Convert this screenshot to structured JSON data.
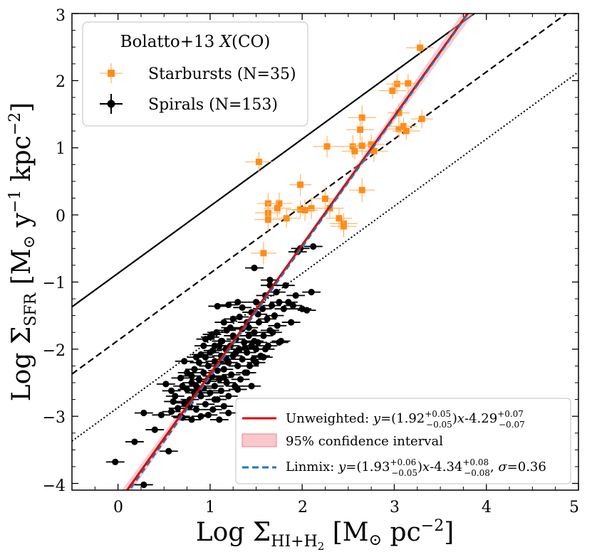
{
  "chart_data": {
    "type": "scatter",
    "xlabel": "Log Σ_HI+H2 [M⊙ pc⁻²]",
    "ylabel": "Log Σ_SFR [M⊙ y⁻¹ kpc⁻²]",
    "xlabel_parts": {
      "main": "Log Σ",
      "sub": "HI+H",
      "sub2": "2",
      "unit": " [M",
      "sun": "⊙",
      "unit2": " pc",
      "exp": "−2",
      "close": "]"
    },
    "ylabel_parts": {
      "main": "Log Σ",
      "sub": "SFR",
      "unit": " [M",
      "sun": "⊙",
      "unit2": " y",
      "exp1": "−1",
      "unit3": " kpc",
      "exp2": "−2",
      "close": "]"
    },
    "xlim": [
      -0.5,
      5
    ],
    "ylim": [
      -4.1,
      3
    ],
    "xticks": [
      0,
      1,
      2,
      3,
      4,
      5
    ],
    "yticks": [
      -4,
      -3,
      -2,
      -1,
      0,
      1,
      2,
      3
    ],
    "xtick_labels": [
      "0",
      "1",
      "2",
      "3",
      "4",
      "5"
    ],
    "ytick_labels": [
      "−4",
      "−3",
      "−2",
      "−1",
      "0",
      "1",
      "2",
      "3"
    ],
    "legend_upper": {
      "title": "Bolatto+13 X(CO)",
      "title_main": "Bolatto+13 ",
      "title_italic": "X",
      "title_rest": "(CO)",
      "location": "top-left",
      "entries": [
        "Starbursts (N=35)",
        "Spirals (N=153)"
      ]
    },
    "legend_lower": {
      "location": "bottom-right",
      "entries": [
        "Unweighted: y=(1.92+0.05−0.05)x-4.29+0.07−0.07",
        "95% confidence interval",
        "Linmix: y=(1.93+0.06−0.05)x-4.34+0.08−0.08, σ=0.36"
      ],
      "unweighted": {
        "prefix": "Unweighted: ",
        "y": "y",
        "eq": "=(1.92",
        "sup1": "+0.05",
        "sub1": "−0.05",
        "mid": ")",
        "x": "x",
        "rest": "-4.29",
        "sup2": "+0.07",
        "sub2": "−0.07"
      },
      "ci": "95% confidence interval",
      "linmix": {
        "prefix": "Linmix: ",
        "y": "y",
        "eq": "=(1.93",
        "sup1": "+0.06",
        "sub1": "−0.05",
        "mid": ")",
        "x": "x",
        "rest": "-4.34",
        "sup2": "+0.08",
        "sub2": "−0.08",
        "tail": ", ",
        "sigma": "σ",
        "tailval": "=0.36"
      }
    },
    "colors": {
      "starburst": "#ff8c1a",
      "spiral": "#000000",
      "fit": "#e00000",
      "band": "#f4a3a8",
      "linmix": "#1f77b4"
    },
    "reference_lines": [
      {
        "name": "solid",
        "style": "solid",
        "slope": 1,
        "intercept": -0.87
      },
      {
        "name": "dashed",
        "style": "dashed",
        "slope": 1,
        "intercept": -1.87
      },
      {
        "name": "dotted",
        "style": "dotted",
        "slope": 1,
        "intercept": -2.87
      }
    ],
    "fit_unweighted": {
      "slope": 1.92,
      "intercept": -4.29
    },
    "fit_linmix": {
      "slope": 1.93,
      "intercept": -4.34
    },
    "starbursts": [
      {
        "x": 3.28,
        "y": 2.49,
        "xerr": 0.15,
        "yerr": 0.12
      },
      {
        "x": 3.03,
        "y": 1.95,
        "xerr": 0.12,
        "yerr": 0.15
      },
      {
        "x": 2.98,
        "y": 1.85,
        "xerr": 0.15,
        "yerr": 0.12
      },
      {
        "x": 3.15,
        "y": 1.96,
        "xerr": 0.15,
        "yerr": 0.14
      },
      {
        "x": 3.05,
        "y": 1.52,
        "xerr": 0.12,
        "yerr": 0.14
      },
      {
        "x": 2.65,
        "y": 1.45,
        "xerr": 0.15,
        "yerr": 0.18
      },
      {
        "x": 3.3,
        "y": 1.43,
        "xerr": 0.12,
        "yerr": 0.14
      },
      {
        "x": 3.05,
        "y": 1.28,
        "xerr": 0.15,
        "yerr": 0.13
      },
      {
        "x": 3.1,
        "y": 1.32,
        "xerr": 0.15,
        "yerr": 0.13
      },
      {
        "x": 3.13,
        "y": 1.25,
        "xerr": 0.15,
        "yerr": 0.13
      },
      {
        "x": 2.63,
        "y": 1.27,
        "xerr": 0.15,
        "yerr": 0.17
      },
      {
        "x": 2.75,
        "y": 1.05,
        "xerr": 0.15,
        "yerr": 0.15
      },
      {
        "x": 2.55,
        "y": 1.02,
        "xerr": 0.15,
        "yerr": 0.17
      },
      {
        "x": 2.65,
        "y": 1.03,
        "xerr": 0.14,
        "yerr": 0.14
      },
      {
        "x": 2.27,
        "y": 1.02,
        "xerr": 0.15,
        "yerr": 0.16
      },
      {
        "x": 2.57,
        "y": 0.95,
        "xerr": 0.14,
        "yerr": 0.12
      },
      {
        "x": 2.78,
        "y": 0.95,
        "xerr": 0.15,
        "yerr": 0.16
      },
      {
        "x": 1.53,
        "y": 0.79,
        "xerr": 0.15,
        "yerr": 0.15
      },
      {
        "x": 2.65,
        "y": 0.37,
        "xerr": 0.14,
        "yerr": 0.18
      },
      {
        "x": 1.98,
        "y": 0.45,
        "xerr": 0.12,
        "yerr": 0.16
      },
      {
        "x": 2.25,
        "y": 0.24,
        "xerr": 0.15,
        "yerr": 0.17
      },
      {
        "x": 1.63,
        "y": 0.17,
        "xerr": 0.12,
        "yerr": 0.16
      },
      {
        "x": 1.75,
        "y": 0.17,
        "xerr": 0.14,
        "yerr": 0.16
      },
      {
        "x": 1.73,
        "y": 0.1,
        "xerr": 0.15,
        "yerr": 0.13
      },
      {
        "x": 2.3,
        "y": 0.1,
        "xerr": 0.15,
        "yerr": 0.16
      },
      {
        "x": 2.1,
        "y": 0.1,
        "xerr": 0.12,
        "yerr": 0.16
      },
      {
        "x": 1.98,
        "y": 0.08,
        "xerr": 0.15,
        "yerr": 0.13
      },
      {
        "x": 2.03,
        "y": 0.07,
        "xerr": 0.14,
        "yerr": 0.16
      },
      {
        "x": 1.63,
        "y": 0.03,
        "xerr": 0.14,
        "yerr": 0.15
      },
      {
        "x": 1.63,
        "y": -0.07,
        "xerr": 0.15,
        "yerr": 0.17
      },
      {
        "x": 1.83,
        "y": -0.05,
        "xerr": 0.15,
        "yerr": 0.14
      },
      {
        "x": 2.4,
        "y": -0.05,
        "xerr": 0.14,
        "yerr": 0.16
      },
      {
        "x": 2.45,
        "y": -0.13,
        "xerr": 0.15,
        "yerr": 0.15
      },
      {
        "x": 2.45,
        "y": -0.17,
        "xerr": 0.14,
        "yerr": 0.16
      },
      {
        "x": 1.58,
        "y": -0.57,
        "xerr": 0.14,
        "yerr": 0.17
      }
    ],
    "spirals": [
      {
        "x": -0.03,
        "y": -3.68
      },
      {
        "x": 0.18,
        "y": -3.38
      },
      {
        "x": 0.28,
        "y": -4.02
      },
      {
        "x": 0.28,
        "y": -2.95
      },
      {
        "x": 0.4,
        "y": -3.2
      },
      {
        "x": 0.47,
        "y": -2.98
      },
      {
        "x": 0.52,
        "y": -2.52
      },
      {
        "x": 0.58,
        "y": -2.93
      },
      {
        "x": 0.58,
        "y": -2.62
      },
      {
        "x": 0.62,
        "y": -2.7
      },
      {
        "x": 0.65,
        "y": -2.88
      },
      {
        "x": 0.68,
        "y": -2.43
      },
      {
        "x": 0.7,
        "y": -2.55
      },
      {
        "x": 0.72,
        "y": -2.8
      },
      {
        "x": 0.75,
        "y": -2.6
      },
      {
        "x": 0.75,
        "y": -2.35
      },
      {
        "x": 0.78,
        "y": -2.75
      },
      {
        "x": 0.8,
        "y": -2.5
      },
      {
        "x": 0.8,
        "y": -3.05
      },
      {
        "x": 0.83,
        "y": -2.65
      },
      {
        "x": 0.83,
        "y": -2.3
      },
      {
        "x": 0.85,
        "y": -2.55
      },
      {
        "x": 0.85,
        "y": -2.9
      },
      {
        "x": 0.88,
        "y": -2.2
      },
      {
        "x": 0.88,
        "y": -2.45
      },
      {
        "x": 0.9,
        "y": -2.7
      },
      {
        "x": 0.9,
        "y": -3.0
      },
      {
        "x": 0.93,
        "y": -2.35
      },
      {
        "x": 0.93,
        "y": -2.58
      },
      {
        "x": 0.95,
        "y": -2.12
      },
      {
        "x": 0.95,
        "y": -2.82
      },
      {
        "x": 0.97,
        "y": -2.48
      },
      {
        "x": 0.98,
        "y": -2.25
      },
      {
        "x": 1.0,
        "y": -2.65
      },
      {
        "x": 1.0,
        "y": -1.82
      },
      {
        "x": 1.02,
        "y": -2.4
      },
      {
        "x": 1.03,
        "y": -2.02
      },
      {
        "x": 1.03,
        "y": -2.9
      },
      {
        "x": 1.05,
        "y": -2.55
      },
      {
        "x": 1.05,
        "y": -2.18
      },
      {
        "x": 1.07,
        "y": -1.75
      },
      {
        "x": 1.08,
        "y": -2.32
      },
      {
        "x": 1.08,
        "y": -2.75
      },
      {
        "x": 1.1,
        "y": -1.95
      },
      {
        "x": 1.1,
        "y": -2.45
      },
      {
        "x": 1.12,
        "y": -2.1
      },
      {
        "x": 1.12,
        "y": -2.62
      },
      {
        "x": 1.13,
        "y": -1.88
      },
      {
        "x": 1.15,
        "y": -2.3
      },
      {
        "x": 1.15,
        "y": -2.85
      },
      {
        "x": 1.17,
        "y": -2.0
      },
      {
        "x": 1.18,
        "y": -2.5
      },
      {
        "x": 1.18,
        "y": -1.72
      },
      {
        "x": 1.2,
        "y": -2.2
      },
      {
        "x": 1.2,
        "y": -2.7
      },
      {
        "x": 1.22,
        "y": -1.95
      },
      {
        "x": 1.23,
        "y": -2.38
      },
      {
        "x": 1.25,
        "y": -1.55
      },
      {
        "x": 1.25,
        "y": -2.1
      },
      {
        "x": 1.27,
        "y": -2.55
      },
      {
        "x": 1.28,
        "y": -1.85
      },
      {
        "x": 1.3,
        "y": -2.25
      },
      {
        "x": 1.3,
        "y": -1.3
      },
      {
        "x": 1.32,
        "y": -2.0
      },
      {
        "x": 1.33,
        "y": -2.45
      },
      {
        "x": 1.35,
        "y": -1.7
      },
      {
        "x": 1.35,
        "y": -2.15
      },
      {
        "x": 1.37,
        "y": -1.9
      },
      {
        "x": 1.38,
        "y": -2.35
      },
      {
        "x": 1.4,
        "y": -1.6
      },
      {
        "x": 1.4,
        "y": -2.05
      },
      {
        "x": 1.42,
        "y": -1.8
      },
      {
        "x": 1.43,
        "y": -2.25
      },
      {
        "x": 1.45,
        "y": -1.95
      },
      {
        "x": 1.45,
        "y": -1.45
      },
      {
        "x": 1.47,
        "y": -2.15
      },
      {
        "x": 1.48,
        "y": -1.75
      },
      {
        "x": 1.5,
        "y": -2.0
      },
      {
        "x": 1.5,
        "y": -1.3
      },
      {
        "x": 1.52,
        "y": -1.9
      },
      {
        "x": 1.53,
        "y": -1.6
      },
      {
        "x": 1.55,
        "y": -2.1
      },
      {
        "x": 1.57,
        "y": -1.4
      },
      {
        "x": 1.58,
        "y": -1.8
      },
      {
        "x": 1.6,
        "y": -1.2
      },
      {
        "x": 1.62,
        "y": -1.55
      },
      {
        "x": 1.63,
        "y": -1.95
      },
      {
        "x": 1.65,
        "y": -1.05
      },
      {
        "x": 1.67,
        "y": -1.35
      },
      {
        "x": 1.68,
        "y": -1.75
      },
      {
        "x": 1.7,
        "y": -1.5
      },
      {
        "x": 1.72,
        "y": -1.15
      },
      {
        "x": 1.73,
        "y": -1.65
      },
      {
        "x": 1.75,
        "y": -1.3
      },
      {
        "x": 1.77,
        "y": -1.88
      },
      {
        "x": 1.8,
        "y": -1.4
      },
      {
        "x": 1.82,
        "y": -1.05
      },
      {
        "x": 1.85,
        "y": -1.3
      },
      {
        "x": 1.88,
        "y": -1.6
      },
      {
        "x": 1.9,
        "y": -1.35
      },
      {
        "x": 1.93,
        "y": -1.2
      },
      {
        "x": 1.95,
        "y": -0.55
      },
      {
        "x": 1.98,
        "y": -0.5
      },
      {
        "x": 2.0,
        "y": -1.4
      },
      {
        "x": 2.05,
        "y": -1.42
      },
      {
        "x": 2.1,
        "y": -1.15
      },
      {
        "x": 2.12,
        "y": -0.47
      },
      {
        "x": 1.48,
        "y": -0.79
      },
      {
        "x": 1.65,
        "y": -0.97
      },
      {
        "x": 1.2,
        "y": -1.34
      },
      {
        "x": 1.08,
        "y": -1.36
      },
      {
        "x": 1.0,
        "y": -2.05
      },
      {
        "x": 0.95,
        "y": -1.85
      },
      {
        "x": 1.05,
        "y": -1.95
      },
      {
        "x": 1.15,
        "y": -1.6
      },
      {
        "x": 1.25,
        "y": -1.8
      },
      {
        "x": 1.35,
        "y": -1.38
      },
      {
        "x": 0.72,
        "y": -2.18
      },
      {
        "x": 0.8,
        "y": -2.4
      },
      {
        "x": 0.9,
        "y": -2.08
      },
      {
        "x": 1.05,
        "y": -2.75
      },
      {
        "x": 1.15,
        "y": -2.42
      },
      {
        "x": 1.3,
        "y": -2.6
      },
      {
        "x": 1.4,
        "y": -2.35
      },
      {
        "x": 1.45,
        "y": -2.55
      },
      {
        "x": 1.5,
        "y": -2.2
      },
      {
        "x": 1.2,
        "y": -2.95
      },
      {
        "x": 0.98,
        "y": -2.98
      },
      {
        "x": 0.7,
        "y": -3.02
      },
      {
        "x": 1.1,
        "y": -3.05
      },
      {
        "x": 1.6,
        "y": -2.0
      },
      {
        "x": 1.65,
        "y": -1.72
      },
      {
        "x": 0.85,
        "y": -2.12
      },
      {
        "x": 0.93,
        "y": -1.95
      },
      {
        "x": 1.02,
        "y": -1.78
      },
      {
        "x": 1.12,
        "y": -1.88
      },
      {
        "x": 1.22,
        "y": -1.68
      },
      {
        "x": 1.32,
        "y": -1.52
      },
      {
        "x": 1.42,
        "y": -1.68
      },
      {
        "x": 1.52,
        "y": -1.48
      },
      {
        "x": 0.78,
        "y": -2.85
      },
      {
        "x": 0.88,
        "y": -2.62
      },
      {
        "x": 0.98,
        "y": -2.45
      },
      {
        "x": 1.08,
        "y": -2.22
      },
      {
        "x": 1.18,
        "y": -2.15
      },
      {
        "x": 1.28,
        "y": -2.05
      },
      {
        "x": 1.38,
        "y": -1.98
      },
      {
        "x": 1.48,
        "y": -1.88
      },
      {
        "x": 0.6,
        "y": -2.78
      },
      {
        "x": 0.68,
        "y": -3.0
      },
      {
        "x": 0.55,
        "y": -3.52
      },
      {
        "x": 1.58,
        "y": -2.12
      },
      {
        "x": 1.75,
        "y": -1.9
      }
    ]
  }
}
